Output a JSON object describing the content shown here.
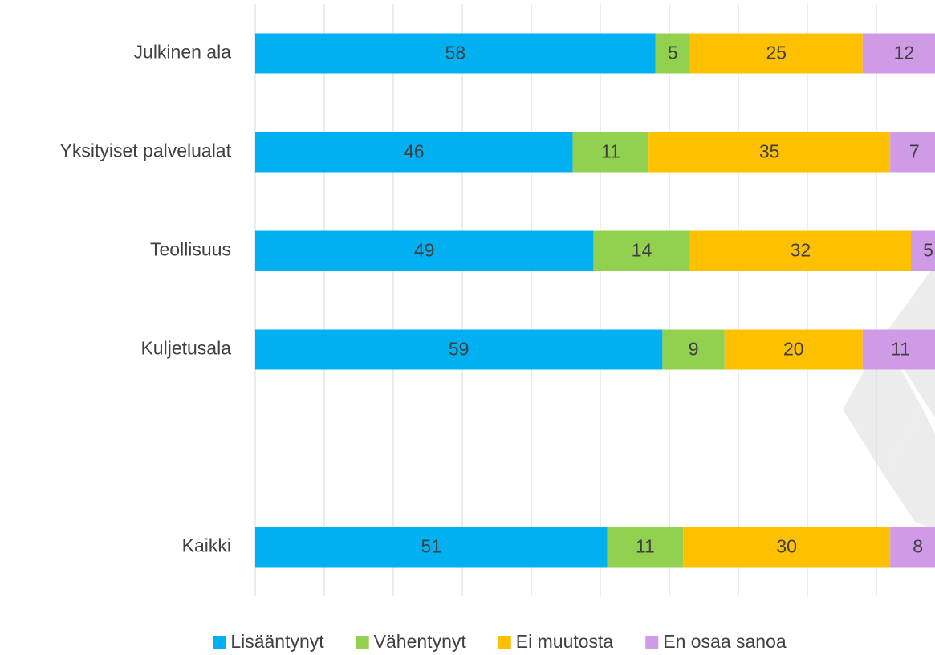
{
  "chart_data": {
    "type": "stacked_bar_horizontal",
    "categories": [
      "Julkinen ala",
      "Yksityiset palvelualat",
      "Teollisuus",
      "Kuljetusala",
      null,
      "Kaikki"
    ],
    "series": [
      {
        "name": "Lisääntynyt",
        "color": "#00b0f0",
        "values": [
          58,
          46,
          49,
          59,
          null,
          51
        ]
      },
      {
        "name": "Vähentynyt",
        "color": "#92d050",
        "values": [
          5,
          11,
          14,
          9,
          null,
          11
        ]
      },
      {
        "name": "Ei muutosta",
        "color": "#ffc000",
        "values": [
          25,
          35,
          32,
          20,
          null,
          30
        ]
      },
      {
        "name": "En osaa sanoa",
        "color": "#cf9be6",
        "values": [
          12,
          7,
          5,
          11,
          null,
          8
        ]
      }
    ],
    "xlim": [
      0,
      100
    ],
    "xticks": [
      0,
      10,
      20,
      30,
      40,
      50,
      60,
      70,
      80,
      90,
      100
    ],
    "grid": true,
    "legend": "bottom"
  }
}
